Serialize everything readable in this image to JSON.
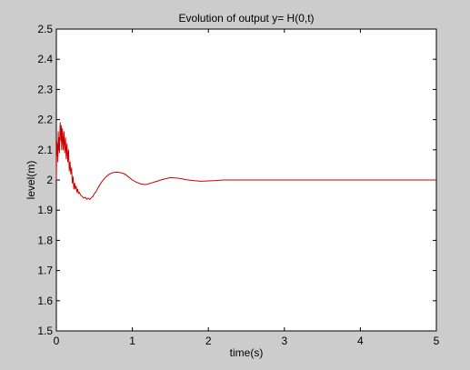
{
  "chart_data": {
    "type": "line",
    "title": "Evolution of output y= H(0,t)",
    "xlabel": "time(s)",
    "ylabel": "level(m)",
    "xlim": [
      0,
      5
    ],
    "ylim": [
      1.5,
      2.5
    ],
    "xticks": [
      "0",
      "1",
      "2",
      "3",
      "4",
      "5"
    ],
    "yticks": [
      "1.5",
      "1.6",
      "1.7",
      "1.8",
      "1.9",
      "2",
      "2.1",
      "2.2",
      "2.3",
      "2.4",
      "2.5"
    ],
    "grid": false,
    "legend": "none",
    "series": [
      {
        "color": "#cc0000",
        "x": [
          0,
          0.005,
          0.01,
          0.015,
          0.02,
          0.025,
          0.03,
          0.035,
          0.04,
          0.05,
          0.06,
          0.065,
          0.07,
          0.08,
          0.09,
          0.1,
          0.11,
          0.12,
          0.13,
          0.14,
          0.15,
          0.16,
          0.17,
          0.18,
          0.19,
          0.2,
          0.21,
          0.22,
          0.23,
          0.24,
          0.25,
          0.26,
          0.27,
          0.28,
          0.29,
          0.3,
          0.32,
          0.34,
          0.36,
          0.38,
          0.4,
          0.42,
          0.44,
          0.46,
          0.48,
          0.5,
          0.52,
          0.55,
          0.6,
          0.65,
          0.7,
          0.75,
          0.8,
          0.85,
          0.9,
          0.95,
          1.0,
          1.05,
          1.1,
          1.15,
          1.2,
          1.25,
          1.3,
          1.4,
          1.5,
          1.6,
          1.65,
          1.7,
          1.8,
          1.9,
          2.0,
          2.1,
          2.2,
          2.3,
          2.5,
          3.0,
          3.5,
          4.0,
          4.5,
          5.0
        ],
        "y": [
          2.0,
          2.13,
          2.08,
          2.12,
          2.06,
          2.16,
          2.1,
          2.14,
          2.09,
          2.19,
          2.13,
          2.18,
          2.1,
          2.17,
          2.1,
          2.16,
          2.09,
          2.14,
          2.07,
          2.12,
          2.06,
          2.1,
          2.03,
          2.06,
          2.02,
          2.04,
          1.99,
          2.01,
          1.97,
          1.99,
          1.97,
          1.98,
          1.96,
          1.97,
          1.955,
          1.96,
          1.95,
          1.945,
          1.94,
          1.943,
          1.936,
          1.94,
          1.935,
          1.942,
          1.945,
          1.955,
          1.96,
          1.975,
          1.995,
          2.01,
          2.02,
          2.025,
          2.026,
          2.024,
          2.02,
          2.01,
          2.0,
          1.993,
          1.988,
          1.985,
          1.986,
          1.99,
          1.994,
          2.002,
          2.008,
          2.006,
          2.004,
          2.001,
          1.998,
          1.996,
          1.997,
          1.998,
          2.0,
          2.0,
          2.0,
          2.0,
          2.0,
          2.0,
          2.0,
          2.0
        ]
      }
    ]
  }
}
